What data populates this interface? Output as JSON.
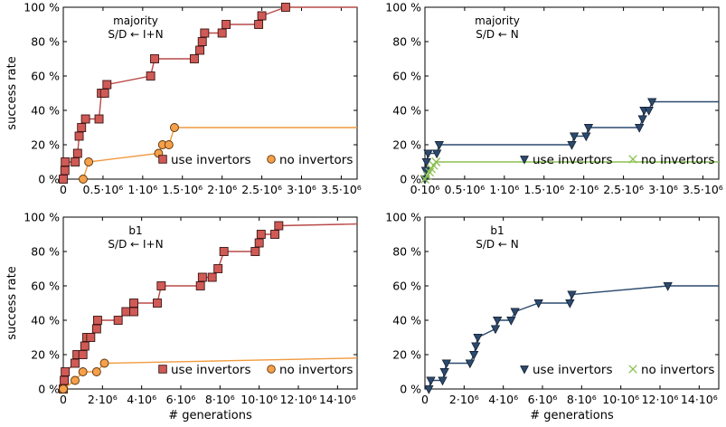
{
  "chart_data": [
    {
      "type": "line",
      "annotation": [
        "majority",
        "S/D ← I+N"
      ],
      "ylabel": "success rate",
      "xlabel": "",
      "xlim": [
        0,
        3700000
      ],
      "ylim": [
        0,
        100
      ],
      "x_ticks": [
        {
          "v": 0,
          "label": "0"
        },
        {
          "v": 500000,
          "label": "0.5·10⁶"
        },
        {
          "v": 1000000,
          "label": "1·10⁶"
        },
        {
          "v": 1500000,
          "label": "1.5·10⁶"
        },
        {
          "v": 2000000,
          "label": "2·10⁶"
        },
        {
          "v": 2500000,
          "label": "2.5·10⁶"
        },
        {
          "v": 3000000,
          "label": "3·10⁶"
        },
        {
          "v": 3500000,
          "label": "3.5·10⁶"
        }
      ],
      "y_ticks": [
        {
          "v": 0,
          "label": "0 %"
        },
        {
          "v": 20,
          "label": "20 %"
        },
        {
          "v": 40,
          "label": "40 %"
        },
        {
          "v": 60,
          "label": "60 %"
        },
        {
          "v": 80,
          "label": "80 %"
        },
        {
          "v": 100,
          "label": "100 %"
        }
      ],
      "legend_position": "lower-right",
      "series": [
        {
          "name": "use invertors",
          "marker": "square",
          "color": "#b94a48",
          "fill": "#d05a55",
          "points": [
            [
              0,
              0
            ],
            [
              20000,
              5
            ],
            [
              25000,
              10
            ],
            [
              150000,
              10
            ],
            [
              180000,
              15
            ],
            [
              200000,
              25
            ],
            [
              230000,
              30
            ],
            [
              280000,
              35
            ],
            [
              450000,
              35
            ],
            [
              480000,
              50
            ],
            [
              520000,
              50
            ],
            [
              550000,
              55
            ],
            [
              1100000,
              60
            ],
            [
              1150000,
              70
            ],
            [
              1650000,
              70
            ],
            [
              1720000,
              75
            ],
            [
              1750000,
              80
            ],
            [
              1780000,
              85
            ],
            [
              2000000,
              85
            ],
            [
              2050000,
              90
            ],
            [
              2460000,
              90
            ],
            [
              2500000,
              95
            ],
            [
              2800000,
              100
            ],
            [
              3700000,
              100
            ]
          ]
        },
        {
          "name": "no invertors",
          "marker": "circle",
          "color": "#f09a3e",
          "fill": "#f5a04a",
          "points": [
            [
              250000,
              0
            ],
            [
              320000,
              10
            ],
            [
              1200000,
              15
            ],
            [
              1250000,
              20
            ],
            [
              1330000,
              20
            ],
            [
              1400000,
              30
            ],
            [
              3700000,
              30
            ]
          ]
        }
      ]
    },
    {
      "type": "line",
      "annotation": [
        "majority",
        "S/D ← N"
      ],
      "ylabel": "",
      "xlabel": "",
      "xlim": [
        0,
        3700000
      ],
      "ylim": [
        0,
        100
      ],
      "x_ticks": [
        {
          "v": 0,
          "label": "0·10⁶"
        },
        {
          "v": 500000,
          "label": "0.5·10⁶"
        },
        {
          "v": 1000000,
          "label": "1·10⁶"
        },
        {
          "v": 1500000,
          "label": "1.5·10⁶"
        },
        {
          "v": 2000000,
          "label": "2·10⁶"
        },
        {
          "v": 2500000,
          "label": "2.5·10⁶"
        },
        {
          "v": 3000000,
          "label": "3·10⁶"
        },
        {
          "v": 3500000,
          "label": "3.5·10⁶"
        }
      ],
      "y_ticks": [
        {
          "v": 0,
          "label": "0 %"
        },
        {
          "v": 20,
          "label": "20 %"
        },
        {
          "v": 40,
          "label": "40 %"
        },
        {
          "v": 60,
          "label": "60 %"
        },
        {
          "v": 80,
          "label": "80 %"
        },
        {
          "v": 100,
          "label": "100 %"
        }
      ],
      "legend_position": "lower-right",
      "series": [
        {
          "name": "use invertors",
          "marker": "triangle-down",
          "color": "#2c4a6e",
          "fill": "#2c4a6e",
          "points": [
            [
              0,
              0
            ],
            [
              10000,
              5
            ],
            [
              20000,
              10
            ],
            [
              40000,
              15
            ],
            [
              150000,
              15
            ],
            [
              180000,
              20
            ],
            [
              1850000,
              20
            ],
            [
              1880000,
              25
            ],
            [
              2030000,
              25
            ],
            [
              2060000,
              30
            ],
            [
              2700000,
              30
            ],
            [
              2740000,
              35
            ],
            [
              2760000,
              40
            ],
            [
              2820000,
              40
            ],
            [
              2860000,
              45
            ],
            [
              3700000,
              45
            ]
          ]
        },
        {
          "name": "no invertors",
          "marker": "x",
          "color": "#8cc152",
          "fill": "#8cc152",
          "points": [
            [
              0,
              0
            ],
            [
              30000,
              2
            ],
            [
              60000,
              4
            ],
            [
              80000,
              6
            ],
            [
              110000,
              8
            ],
            [
              140000,
              10
            ],
            [
              3700000,
              10
            ]
          ]
        }
      ]
    },
    {
      "type": "line",
      "annotation": [
        "b1",
        "S/D ← I+N"
      ],
      "ylabel": "success rate",
      "xlabel": "# generations",
      "xlim": [
        0,
        15000000
      ],
      "ylim": [
        0,
        100
      ],
      "x_ticks": [
        {
          "v": 0,
          "label": "0"
        },
        {
          "v": 2000000,
          "label": "2·10⁶"
        },
        {
          "v": 4000000,
          "label": "4·10⁶"
        },
        {
          "v": 6000000,
          "label": "6·10⁶"
        },
        {
          "v": 8000000,
          "label": "8·10⁶"
        },
        {
          "v": 10000000,
          "label": "10·10⁶"
        },
        {
          "v": 12000000,
          "label": "12·10⁶"
        },
        {
          "v": 14000000,
          "label": "14·10⁶"
        }
      ],
      "y_ticks": [
        {
          "v": 0,
          "label": "0 %"
        },
        {
          "v": 20,
          "label": "20 %"
        },
        {
          "v": 40,
          "label": "40 %"
        },
        {
          "v": 60,
          "label": "60 %"
        },
        {
          "v": 80,
          "label": "80 %"
        },
        {
          "v": 100,
          "label": "100 %"
        }
      ],
      "legend_position": "lower-right",
      "series": [
        {
          "name": "use invertors",
          "marker": "square",
          "color": "#b94a48",
          "fill": "#d05a55",
          "points": [
            [
              0,
              0
            ],
            [
              50000,
              5
            ],
            [
              100000,
              10
            ],
            [
              600000,
              15
            ],
            [
              700000,
              20
            ],
            [
              1000000,
              20
            ],
            [
              1100000,
              25
            ],
            [
              1200000,
              30
            ],
            [
              1400000,
              30
            ],
            [
              1700000,
              35
            ],
            [
              1750000,
              40
            ],
            [
              2800000,
              40
            ],
            [
              3200000,
              45
            ],
            [
              3600000,
              45
            ],
            [
              3600000,
              50
            ],
            [
              4800000,
              50
            ],
            [
              5000000,
              60
            ],
            [
              7000000,
              60
            ],
            [
              7100000,
              65
            ],
            [
              7600000,
              65
            ],
            [
              7900000,
              70
            ],
            [
              8200000,
              80
            ],
            [
              9800000,
              80
            ],
            [
              10000000,
              85
            ],
            [
              10100000,
              90
            ],
            [
              10800000,
              90
            ],
            [
              11000000,
              95
            ],
            [
              15000000,
              96
            ]
          ]
        },
        {
          "name": "no invertors",
          "marker": "circle",
          "color": "#f09a3e",
          "fill": "#f5a04a",
          "points": [
            [
              0,
              0
            ],
            [
              600000,
              5
            ],
            [
              1000000,
              10
            ],
            [
              1700000,
              10
            ],
            [
              2100000,
              15
            ],
            [
              15000000,
              18
            ]
          ]
        }
      ]
    },
    {
      "type": "line",
      "annotation": [
        "b1",
        "S/D ← N"
      ],
      "ylabel": "",
      "xlabel": "# generations",
      "xlim": [
        0,
        15000000
      ],
      "ylim": [
        0,
        100
      ],
      "x_ticks": [
        {
          "v": 0,
          "label": "0"
        },
        {
          "v": 2000000,
          "label": "2·10⁶"
        },
        {
          "v": 4000000,
          "label": "4·10⁶"
        },
        {
          "v": 6000000,
          "label": "6·10⁶"
        },
        {
          "v": 8000000,
          "label": "8·10⁶"
        },
        {
          "v": 10000000,
          "label": "10·10⁶"
        },
        {
          "v": 12000000,
          "label": "12·10⁶"
        },
        {
          "v": 14000000,
          "label": "14·10⁶"
        }
      ],
      "y_ticks": [
        {
          "v": 0,
          "label": "0 %"
        },
        {
          "v": 20,
          "label": "20 %"
        },
        {
          "v": 40,
          "label": "40 %"
        },
        {
          "v": 60,
          "label": "60 %"
        },
        {
          "v": 80,
          "label": "80 %"
        },
        {
          "v": 100,
          "label": "100 %"
        }
      ],
      "legend_position": "lower-right",
      "series": [
        {
          "name": "use invertors",
          "marker": "triangle-down",
          "color": "#2c4a6e",
          "fill": "#2c4a6e",
          "points": [
            [
              200000,
              0
            ],
            [
              300000,
              5
            ],
            [
              900000,
              5
            ],
            [
              1000000,
              10
            ],
            [
              1100000,
              15
            ],
            [
              2300000,
              15
            ],
            [
              2500000,
              20
            ],
            [
              2600000,
              25
            ],
            [
              2700000,
              30
            ],
            [
              3600000,
              35
            ],
            [
              3700000,
              40
            ],
            [
              4400000,
              40
            ],
            [
              4600000,
              45
            ],
            [
              5800000,
              50
            ],
            [
              7400000,
              50
            ],
            [
              7500000,
              55
            ],
            [
              12400000,
              60
            ],
            [
              15000000,
              60
            ]
          ]
        },
        {
          "name": "no invertors",
          "marker": "x",
          "color": "#8cc152",
          "fill": "#8cc152",
          "points": []
        }
      ]
    }
  ]
}
